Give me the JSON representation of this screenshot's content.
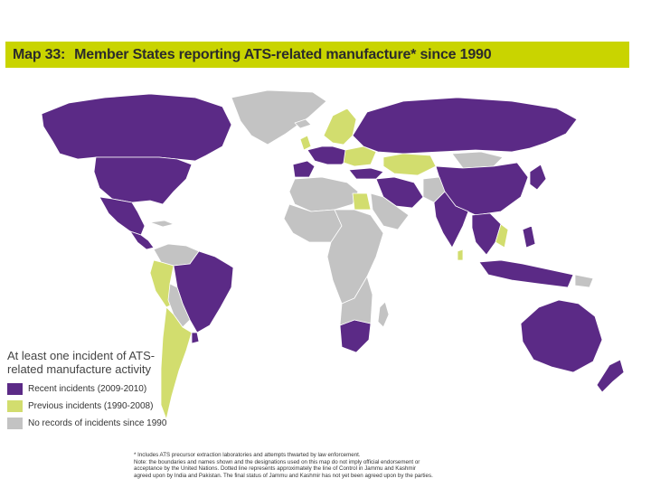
{
  "title": {
    "map_number": "Map 33:",
    "text": "Member States reporting ATS-related manufacture* since 1990"
  },
  "legend": {
    "heading": "At least one incident of ATS-related manufacture activity",
    "items": [
      {
        "label": "Recent incidents (2009-2010)",
        "color": "#5b2a86"
      },
      {
        "label": "Previous incidents (1990-2008)",
        "color": "#d2dd6e"
      },
      {
        "label": "No records of incidents since 1990",
        "color": "#c3c3c3"
      }
    ]
  },
  "footnote": {
    "lines": [
      "* Includes ATS precursor extraction laboratories and attempts thwarted by law enforcement.",
      "Note: the boundaries and names shown and the designations used on this map do not imply official endorsement or",
      "acceptance by the United Nations. Dotted line represents approximately the line of Control in Jammu and Kashmir",
      "agreed upon by India and Pakistan. The final status of Jammu and Kashmir has not yet been agreed upon by the parties."
    ]
  },
  "colors": {
    "recent": "#5b2a86",
    "previous": "#d2dd6e",
    "none": "#c3c3c3",
    "title_bar": "#c9d400",
    "border": "#ffffff"
  }
}
